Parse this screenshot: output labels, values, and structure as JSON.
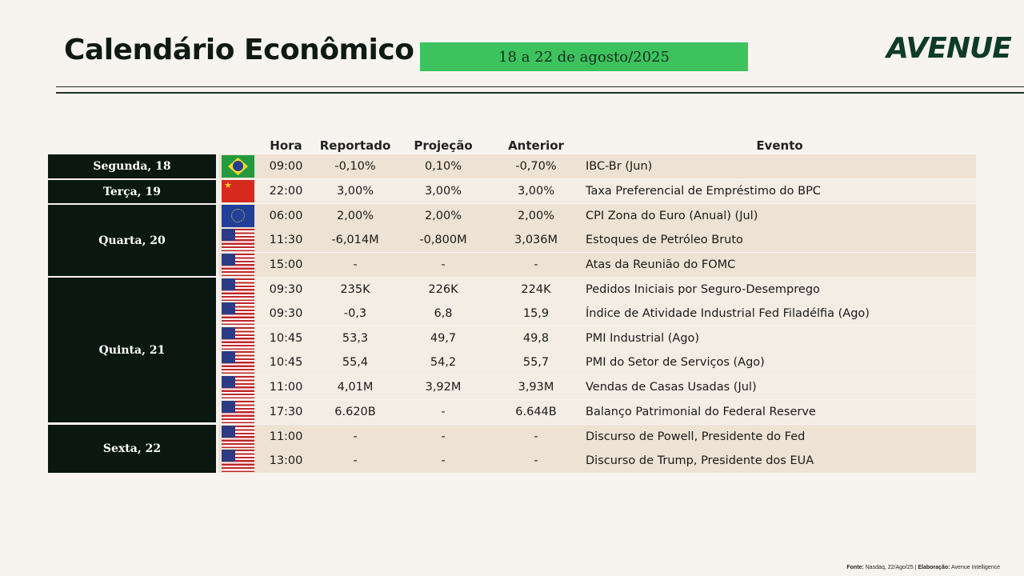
{
  "header": {
    "title": "Calendário Econômico",
    "date_range": "18 a 22 de agosto/2025",
    "logo": "AVENUE"
  },
  "columns": {
    "hora": "Hora",
    "reportado": "Reportado",
    "projecao": "Projeção",
    "anterior": "Anterior",
    "evento": "Evento"
  },
  "days": [
    {
      "label": "Segunda, 18"
    },
    {
      "label": "Terça, 19"
    },
    {
      "label": "Quarta, 20"
    },
    {
      "label": "Quinta, 21"
    },
    {
      "label": "Sexta, 22"
    }
  ],
  "rows": [
    {
      "flag": "brazil-flag-icon",
      "hora": "09:00",
      "reportado": "-0,10%",
      "projecao": "0,10%",
      "anterior": "-0,70%",
      "evento": "IBC-Br (Jun)"
    },
    {
      "flag": "china-flag-icon",
      "hora": "22:00",
      "reportado": "3,00%",
      "projecao": "3,00%",
      "anterior": "3,00%",
      "evento": "Taxa Preferencial de Empréstimo do BPC"
    },
    {
      "flag": "eu-flag-icon",
      "hora": "06:00",
      "reportado": "2,00%",
      "projecao": "2,00%",
      "anterior": "2,00%",
      "evento": "CPI Zona do Euro (Anual) (Jul)"
    },
    {
      "flag": "us-flag-icon",
      "hora": "11:30",
      "reportado": "-6,014M",
      "projecao": "-0,800M",
      "anterior": "3,036M",
      "evento": "Estoques de Petróleo Bruto"
    },
    {
      "flag": "us-flag-icon",
      "hora": "15:00",
      "reportado": "-",
      "projecao": "-",
      "anterior": "-",
      "evento": "Atas da Reunião do FOMC"
    },
    {
      "flag": "us-flag-icon",
      "hora": "09:30",
      "reportado": "235K",
      "projecao": "226K",
      "anterior": "224K",
      "evento": "Pedidos Iniciais por Seguro-Desemprego"
    },
    {
      "flag": "us-flag-icon",
      "hora": "09:30",
      "reportado": "-0,3",
      "projecao": "6,8",
      "anterior": "15,9",
      "evento": "Índice de Atividade Industrial Fed Filadélfia (Ago)"
    },
    {
      "flag": "us-flag-icon",
      "hora": "10:45",
      "reportado": "53,3",
      "projecao": "49,7",
      "anterior": "49,8",
      "evento": "PMI Industrial (Ago)"
    },
    {
      "flag": "us-flag-icon",
      "hora": "10:45",
      "reportado": "55,4",
      "projecao": "54,2",
      "anterior": "55,7",
      "evento": "PMI do Setor de Serviços (Ago)"
    },
    {
      "flag": "us-flag-icon",
      "hora": "11:00",
      "reportado": "4,01M",
      "projecao": "3,92M",
      "anterior": "3,93M",
      "evento": "Vendas de Casas Usadas (Jul)"
    },
    {
      "flag": "us-flag-icon",
      "hora": "17:30",
      "reportado": "6.620B",
      "projecao": "-",
      "anterior": "6.644B",
      "evento": "Balanço Patrimonial do Federal Reserve"
    },
    {
      "flag": "us-flag-icon",
      "hora": "11:00",
      "reportado": "-",
      "projecao": "-",
      "anterior": "-",
      "evento": "Discurso de Powell, Presidente do Fed"
    },
    {
      "flag": "us-flag-icon",
      "hora": "13:00",
      "reportado": "-",
      "projecao": "-",
      "anterior": "-",
      "evento": "Discurso de Trump, Presidente dos EUA"
    }
  ],
  "footer": {
    "fonte_label": "Fonte:",
    "fonte_value": "Nasdaq, 22/Ago/25 |",
    "elaboracao_label": "Elaboração:",
    "elaboracao_value": "Avenue Intelligence"
  },
  "colors": {
    "badge_green": "#3cc35e",
    "day_cell": "#0b1812",
    "row_tan": "#ede2d3",
    "row_light": "#f3ede4"
  }
}
